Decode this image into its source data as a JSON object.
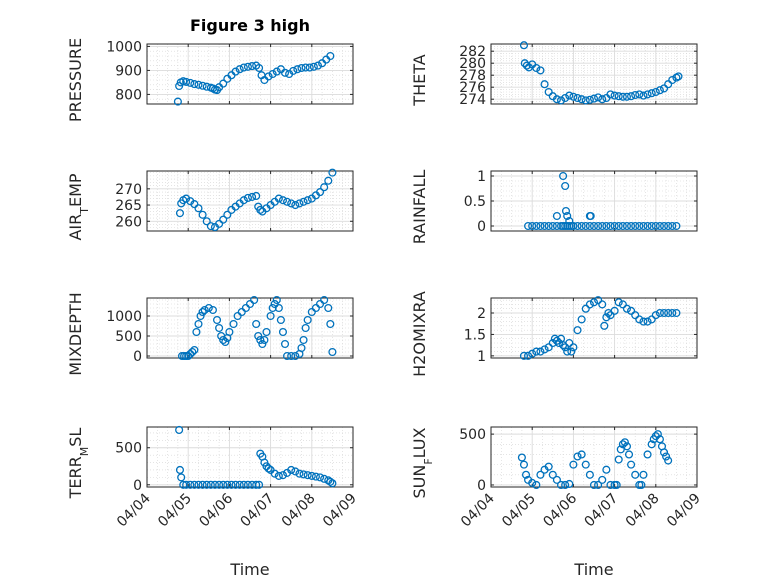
{
  "figure": {
    "title": "Figure 3 high",
    "xlabel": "Time",
    "marker_color": "#0072BD",
    "grid": true,
    "x_ticks": [
      "04/04",
      "04/05",
      "04/06",
      "04/07",
      "04/08",
      "04/09"
    ]
  },
  "chart_data": [
    {
      "type": "scatter",
      "ylabel": "PRESSURE",
      "xlim": [
        0,
        5
      ],
      "ylim": [
        760,
        1010
      ],
      "yticks": [
        800,
        900,
        1000
      ],
      "x": [
        0.75,
        0.78,
        0.82,
        0.88,
        0.95,
        1.05,
        1.15,
        1.25,
        1.35,
        1.45,
        1.55,
        1.6,
        1.65,
        1.7,
        1.75,
        1.85,
        1.95,
        2.05,
        2.15,
        2.25,
        2.35,
        2.45,
        2.55,
        2.65,
        2.72,
        2.78,
        2.85,
        2.95,
        3.05,
        3.15,
        3.25,
        3.35,
        3.45,
        3.55,
        3.65,
        3.75,
        3.85,
        3.95,
        4.05,
        4.15,
        4.25,
        4.35,
        4.45
      ],
      "y": [
        770,
        835,
        850,
        855,
        852,
        848,
        843,
        840,
        836,
        832,
        828,
        825,
        820,
        818,
        830,
        845,
        865,
        880,
        895,
        905,
        912,
        915,
        918,
        920,
        910,
        880,
        860,
        875,
        885,
        895,
        905,
        890,
        885,
        898,
        905,
        910,
        912,
        912,
        915,
        920,
        930,
        945,
        960
      ]
    },
    {
      "type": "scatter",
      "ylabel": "THETA",
      "xlim": [
        0,
        5
      ],
      "ylim": [
        273.2,
        283.2
      ],
      "yticks": [
        274,
        276,
        278,
        280,
        282
      ],
      "x": [
        0.8,
        0.82,
        0.87,
        0.92,
        1.0,
        1.1,
        1.2,
        1.3,
        1.4,
        1.5,
        1.6,
        1.7,
        1.8,
        1.9,
        2.0,
        2.1,
        2.2,
        2.3,
        2.4,
        2.5,
        2.6,
        2.7,
        2.8,
        2.9,
        3.0,
        3.1,
        3.2,
        3.3,
        3.4,
        3.5,
        3.6,
        3.7,
        3.8,
        3.9,
        4.0,
        4.1,
        4.2,
        4.3,
        4.4,
        4.5,
        4.55
      ],
      "y": [
        283,
        280,
        279.6,
        279.3,
        279.8,
        279.2,
        278.8,
        276.5,
        275.2,
        274.5,
        274.0,
        273.8,
        274.2,
        274.6,
        274.4,
        274.2,
        274.0,
        273.8,
        273.9,
        274.1,
        274.3,
        274.0,
        274.2,
        274.8,
        274.6,
        274.5,
        274.4,
        274.4,
        274.5,
        274.7,
        274.8,
        274.6,
        274.8,
        275.0,
        275.2,
        275.5,
        275.8,
        276.5,
        277.2,
        277.6,
        277.8
      ]
    },
    {
      "type": "scatter",
      "ylabel": "AIR_TEMP",
      "xlim": [
        0,
        5
      ],
      "ylim": [
        257,
        275.5
      ],
      "yticks": [
        260,
        265,
        270
      ],
      "x": [
        0.8,
        0.83,
        0.88,
        0.95,
        1.05,
        1.15,
        1.25,
        1.35,
        1.45,
        1.55,
        1.65,
        1.75,
        1.85,
        1.95,
        2.05,
        2.15,
        2.25,
        2.35,
        2.45,
        2.55,
        2.65,
        2.7,
        2.75,
        2.8,
        2.9,
        3.0,
        3.1,
        3.2,
        3.3,
        3.4,
        3.5,
        3.6,
        3.7,
        3.8,
        3.9,
        4.0,
        4.1,
        4.2,
        4.3,
        4.4,
        4.5
      ],
      "y": [
        262.5,
        265.5,
        266.5,
        267.0,
        266.2,
        265.3,
        264.0,
        262.0,
        260.0,
        258.5,
        258.2,
        259.2,
        260.5,
        262.0,
        263.5,
        264.5,
        265.5,
        266.5,
        267.2,
        267.5,
        267.8,
        264.5,
        263.5,
        263.0,
        264.0,
        265.0,
        266.0,
        267.0,
        266.5,
        266.0,
        265.5,
        265.0,
        265.5,
        266.0,
        266.5,
        267.0,
        268.0,
        269.0,
        270.5,
        272.5,
        275.0
      ]
    },
    {
      "type": "scatter",
      "ylabel": "RAINFALL",
      "xlim": [
        0,
        5
      ],
      "ylim": [
        -0.1,
        1.1
      ],
      "yticks": [
        0,
        0.5,
        1
      ],
      "x": [
        0.9,
        1.0,
        1.1,
        1.2,
        1.3,
        1.4,
        1.5,
        1.6,
        1.7,
        1.75,
        1.8,
        1.85,
        1.9,
        1.95,
        2.0,
        2.1,
        2.2,
        2.3,
        2.4,
        2.5,
        2.6,
        2.7,
        2.8,
        2.9,
        3.0,
        3.1,
        3.2,
        3.3,
        3.4,
        3.5,
        3.6,
        3.7,
        3.8,
        3.9,
        4.0,
        4.1,
        4.2,
        4.3,
        4.4,
        4.5,
        1.6,
        1.75,
        1.8,
        1.82,
        1.85,
        1.9,
        2.4,
        2.42
      ],
      "y": [
        0,
        0,
        0,
        0,
        0,
        0,
        0,
        0,
        0,
        0,
        0,
        0,
        0,
        0,
        0,
        0,
        0,
        0,
        0,
        0,
        0,
        0,
        0,
        0,
        0,
        0,
        0,
        0,
        0,
        0,
        0,
        0,
        0,
        0,
        0,
        0,
        0,
        0,
        0,
        0,
        0.2,
        1.0,
        0.8,
        0.3,
        0.2,
        0.1,
        0.2,
        0.2
      ]
    },
    {
      "type": "scatter",
      "ylabel": "MIXDEPTH",
      "xlim": [
        0,
        5
      ],
      "ylim": [
        -50,
        1450
      ],
      "yticks": [
        0,
        500,
        1000
      ],
      "x": [
        0.85,
        0.9,
        0.95,
        1.0,
        1.05,
        1.1,
        1.15,
        1.2,
        1.25,
        1.3,
        1.35,
        1.4,
        1.5,
        1.6,
        1.7,
        1.75,
        1.8,
        1.85,
        1.9,
        1.95,
        2.0,
        2.1,
        2.2,
        2.3,
        2.4,
        2.5,
        2.6,
        2.65,
        2.7,
        2.75,
        2.8,
        2.85,
        2.9,
        3.0,
        3.05,
        3.1,
        3.15,
        3.2,
        3.25,
        3.3,
        3.35,
        3.4,
        3.5,
        3.6,
        3.7,
        3.75,
        3.8,
        3.85,
        3.9,
        4.0,
        4.1,
        4.2,
        4.3,
        4.4,
        4.45,
        4.5
      ],
      "y": [
        0,
        0,
        0,
        0,
        50,
        100,
        150,
        600,
        800,
        1000,
        1100,
        1150,
        1200,
        1150,
        900,
        700,
        500,
        400,
        350,
        450,
        600,
        800,
        1000,
        1100,
        1200,
        1300,
        1400,
        800,
        500,
        400,
        300,
        400,
        600,
        1000,
        1200,
        1300,
        1400,
        1200,
        900,
        600,
        300,
        0,
        0,
        0,
        50,
        200,
        400,
        700,
        900,
        1100,
        1200,
        1300,
        1400,
        1200,
        800,
        100
      ]
    },
    {
      "type": "scatter",
      "ylabel": "H2OMIXRA",
      "xlim": [
        0,
        5
      ],
      "ylim": [
        0.95,
        2.35
      ],
      "yticks": [
        1,
        1.5,
        2
      ],
      "x": [
        0.8,
        0.9,
        1.0,
        1.1,
        1.2,
        1.3,
        1.4,
        1.5,
        1.55,
        1.6,
        1.65,
        1.7,
        1.75,
        1.8,
        1.85,
        1.9,
        1.95,
        2.0,
        2.1,
        2.2,
        2.3,
        2.4,
        2.5,
        2.6,
        2.7,
        2.75,
        2.8,
        2.85,
        2.9,
        3.0,
        3.1,
        3.2,
        3.3,
        3.4,
        3.5,
        3.6,
        3.7,
        3.8,
        3.9,
        4.0,
        4.1,
        4.2,
        4.3,
        4.4,
        4.5
      ],
      "y": [
        1.0,
        1.0,
        1.05,
        1.1,
        1.1,
        1.15,
        1.2,
        1.3,
        1.4,
        1.35,
        1.3,
        1.4,
        1.25,
        1.2,
        1.1,
        1.3,
        1.1,
        1.2,
        1.6,
        1.85,
        2.1,
        2.2,
        2.25,
        2.3,
        2.2,
        1.7,
        1.9,
        2.0,
        1.95,
        2.05,
        2.25,
        2.2,
        2.1,
        2.05,
        1.95,
        1.85,
        1.8,
        1.8,
        1.85,
        1.95,
        2.0,
        2.0,
        2.0,
        2.0,
        2.0
      ]
    },
    {
      "type": "scatter",
      "ylabel": "TERR_MSL",
      "xlim": [
        0,
        5
      ],
      "ylim": [
        -30,
        780
      ],
      "yticks": [
        0,
        500
      ],
      "x": [
        0.78,
        0.8,
        0.83,
        0.88,
        0.95,
        1.05,
        1.15,
        1.25,
        1.35,
        1.45,
        1.55,
        1.65,
        1.75,
        1.85,
        1.95,
        2.05,
        2.15,
        2.25,
        2.35,
        2.45,
        2.55,
        2.65,
        2.72,
        2.75,
        2.8,
        2.85,
        2.9,
        2.95,
        3.0,
        3.1,
        3.2,
        3.3,
        3.4,
        3.5,
        3.6,
        3.7,
        3.8,
        3.9,
        4.0,
        4.1,
        4.2,
        4.3,
        4.4,
        4.45,
        4.5
      ],
      "y": [
        740,
        200,
        100,
        0,
        0,
        0,
        0,
        0,
        0,
        0,
        0,
        0,
        0,
        0,
        0,
        0,
        0,
        0,
        0,
        0,
        0,
        0,
        0,
        420,
        380,
        300,
        250,
        220,
        200,
        150,
        120,
        130,
        160,
        200,
        180,
        150,
        140,
        130,
        120,
        110,
        100,
        80,
        60,
        40,
        20
      ]
    },
    {
      "type": "scatter",
      "ylabel": "SUN_FLUX",
      "xlim": [
        0,
        5
      ],
      "ylim": [
        -20,
        570
      ],
      "yticks": [
        0,
        500
      ],
      "x": [
        0.75,
        0.8,
        0.85,
        0.9,
        1.0,
        1.1,
        1.2,
        1.3,
        1.4,
        1.5,
        1.6,
        1.7,
        1.8,
        1.9,
        2.0,
        2.1,
        2.2,
        2.3,
        2.4,
        2.5,
        2.6,
        2.7,
        2.8,
        2.9,
        3.0,
        3.05,
        3.1,
        3.15,
        3.2,
        3.25,
        3.3,
        3.35,
        3.4,
        3.5,
        3.6,
        3.65,
        3.7,
        3.8,
        3.9,
        3.95,
        4.0,
        4.05,
        4.1,
        4.15,
        4.2,
        4.25,
        4.3
      ],
      "y": [
        270,
        200,
        100,
        50,
        20,
        0,
        100,
        150,
        180,
        100,
        50,
        0,
        0,
        10,
        200,
        280,
        300,
        200,
        100,
        0,
        0,
        50,
        150,
        0,
        0,
        0,
        250,
        350,
        400,
        420,
        380,
        300,
        200,
        100,
        0,
        0,
        100,
        300,
        400,
        450,
        480,
        500,
        450,
        380,
        320,
        280,
        240
      ]
    }
  ]
}
